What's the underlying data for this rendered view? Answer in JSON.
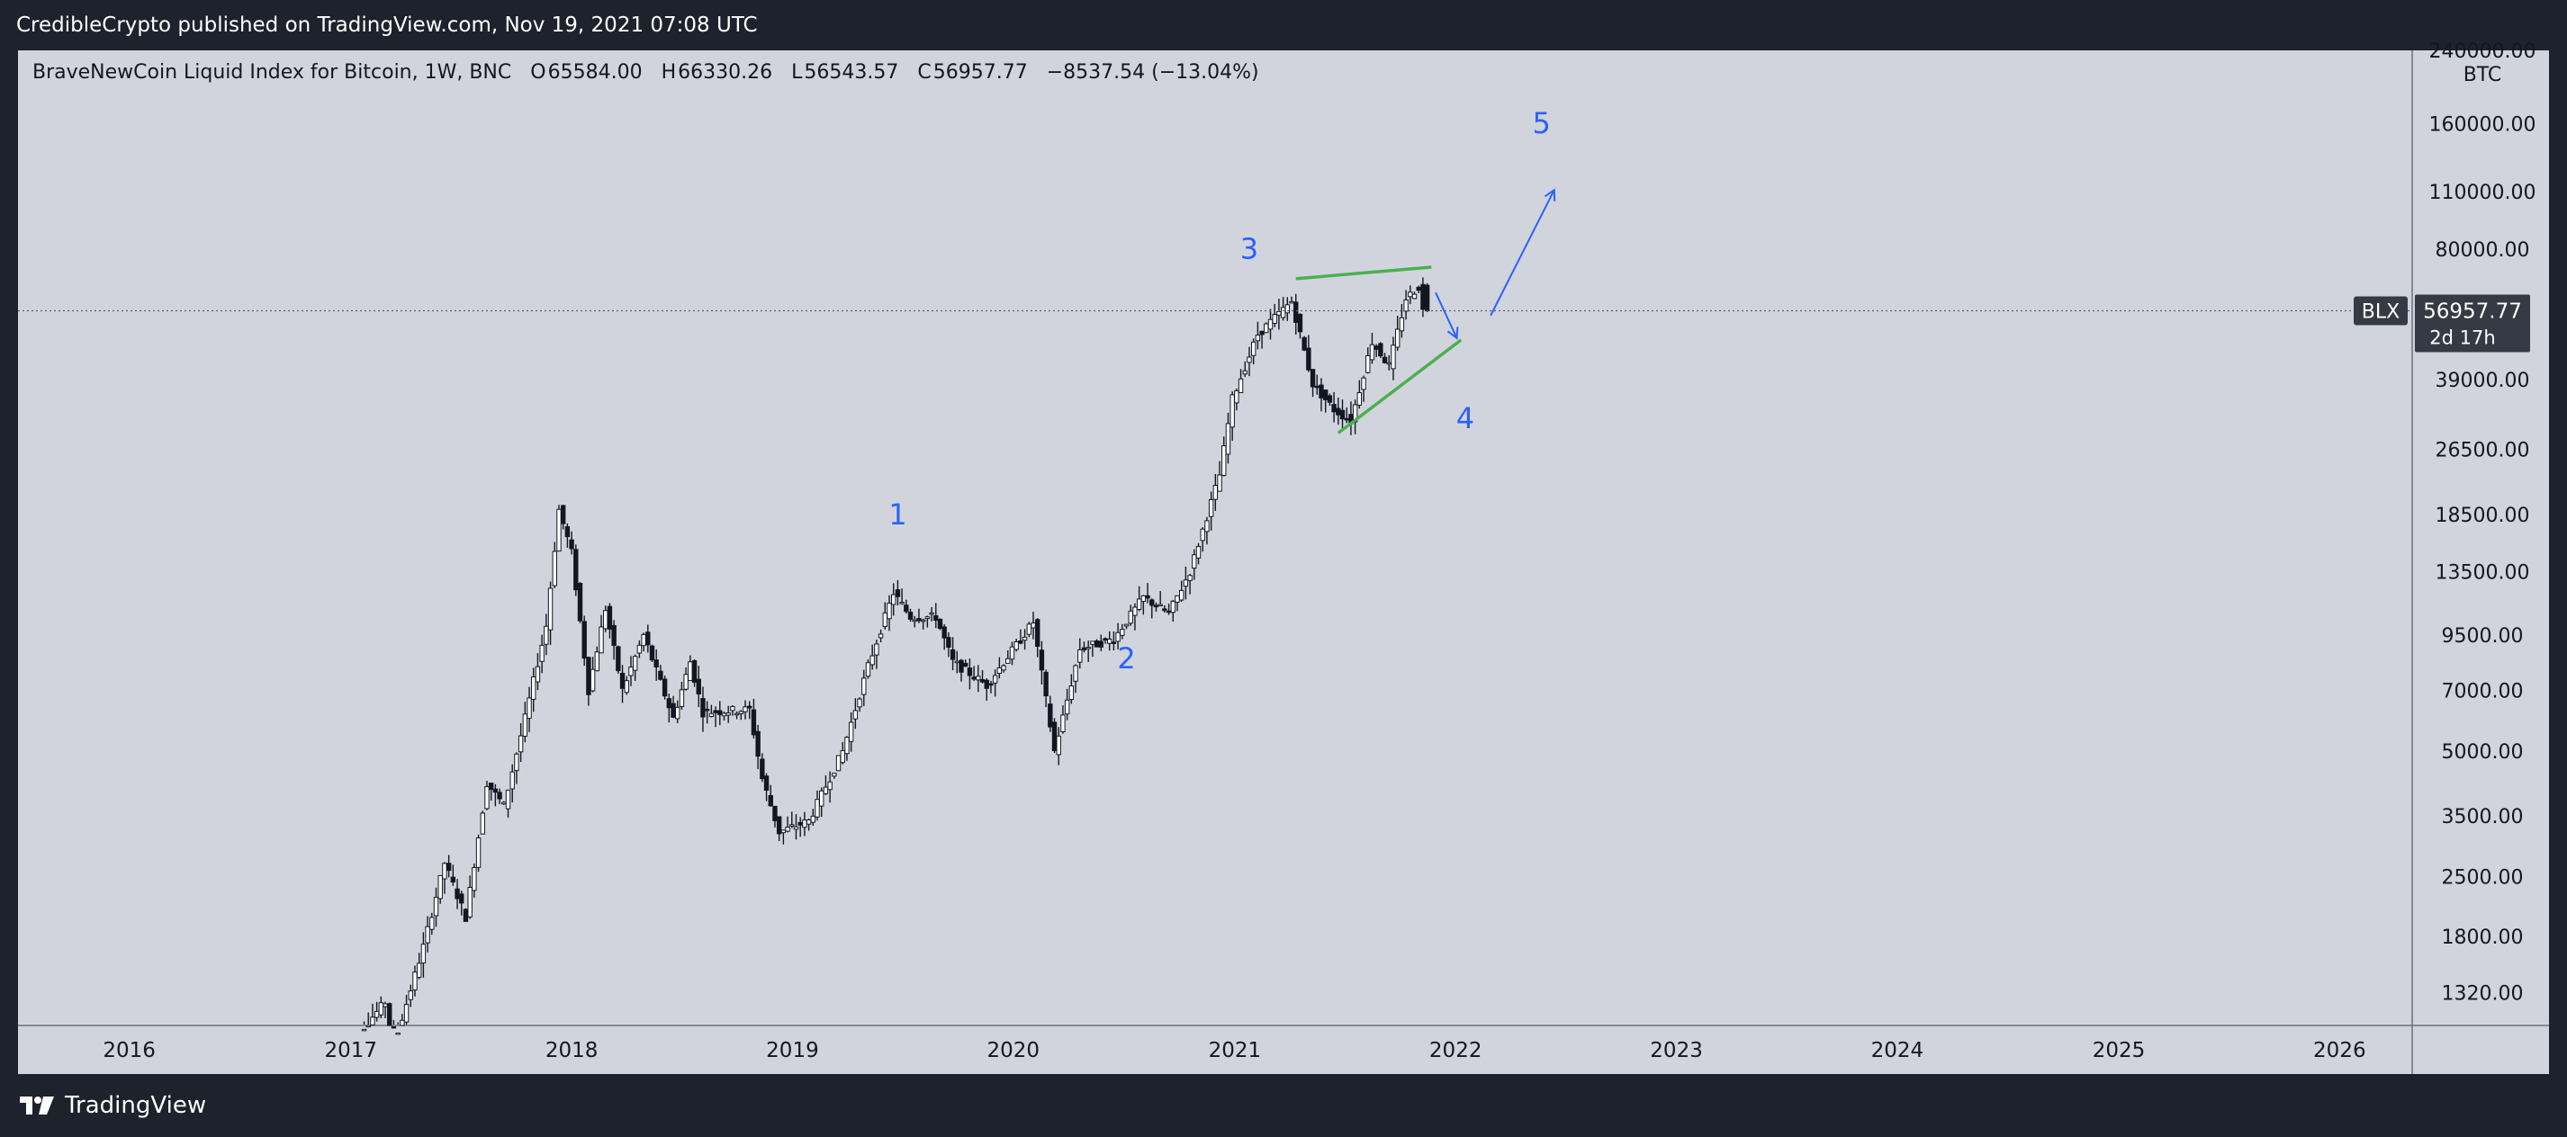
{
  "header": {
    "publisher_line": "CredibleCrypto published on TradingView.com, Nov 19, 2021 07:08 UTC"
  },
  "legend": {
    "symbol_name": "BraveNewCoin Liquid Index for Bitcoin, 1W, BNC",
    "open_key": "O",
    "open": "65584.00",
    "high_key": "H",
    "high": "66330.26",
    "low_key": "L",
    "low": "56543.57",
    "close_key": "C",
    "close": "56957.77",
    "change": "−8537.54 (−13.04%)"
  },
  "price_scale": {
    "top_label": "240000.00",
    "unit": "BTC",
    "ticks": [
      "160000.00",
      "110000.00",
      "80000.00",
      "39000.00",
      "26500.00",
      "18500.00",
      "13500.00",
      "9500.00",
      "7000.00",
      "5000.00",
      "3500.00",
      "2500.00",
      "1800.00",
      "1320.00"
    ],
    "current_symbol": "BLX",
    "current_price": "56957.77",
    "countdown": "2d 17h"
  },
  "time_scale": {
    "ticks": [
      "2016",
      "2017",
      "2018",
      "2019",
      "2020",
      "2021",
      "2022",
      "2023",
      "2024",
      "2025",
      "2026"
    ]
  },
  "footer": {
    "brand": "TradingView"
  },
  "colors": {
    "background": "#d1d4dc",
    "frame": "#1e222d",
    "candle": "#131722",
    "wave_label": "#2962ff",
    "trendline": "#4caf50",
    "arrow": "#2962ff",
    "price_badge": "#363a45"
  },
  "chart_data": {
    "type": "candlestick",
    "interval": "1W",
    "y_scale": "log",
    "x_range": [
      "2015-07-01",
      "2026-05-01"
    ],
    "ylim": [
      1100,
      240000
    ],
    "last_price": 56957.77,
    "price_path": [
      [
        "2016-12-26",
        960
      ],
      [
        "2017-03-06",
        1250
      ],
      [
        "2017-03-20",
        980
      ],
      [
        "2017-05-08",
        1700
      ],
      [
        "2017-06-12",
        2700
      ],
      [
        "2017-07-17",
        2000
      ],
      [
        "2017-08-21",
        4200
      ],
      [
        "2017-09-18",
        3700
      ],
      [
        "2017-10-23",
        6000
      ],
      [
        "2017-11-27",
        10000
      ],
      [
        "2017-12-18",
        19000
      ],
      [
        "2018-01-08",
        15000
      ],
      [
        "2018-02-05",
        7000
      ],
      [
        "2018-03-05",
        11000
      ],
      [
        "2018-04-02",
        7000
      ],
      [
        "2018-05-07",
        9500
      ],
      [
        "2018-06-25",
        6000
      ],
      [
        "2018-07-23",
        8200
      ],
      [
        "2018-08-13",
        6200
      ],
      [
        "2018-10-29",
        6300
      ],
      [
        "2018-11-19",
        4300
      ],
      [
        "2018-12-17",
        3200
      ],
      [
        "2019-02-04",
        3400
      ],
      [
        "2019-04-01",
        5000
      ],
      [
        "2019-05-13",
        8000
      ],
      [
        "2019-06-24",
        12000
      ],
      [
        "2019-07-22",
        10500
      ],
      [
        "2019-09-02",
        10500
      ],
      [
        "2019-09-30",
        8200
      ],
      [
        "2019-11-25",
        7200
      ],
      [
        "2020-02-10",
        10200
      ],
      [
        "2020-03-16",
        5000
      ],
      [
        "2020-04-27",
        8800
      ],
      [
        "2020-06-22",
        9300
      ],
      [
        "2020-08-10",
        11700
      ],
      [
        "2020-09-21",
        10700
      ],
      [
        "2020-10-26",
        13500
      ],
      [
        "2020-12-14",
        23000
      ],
      [
        "2021-01-04",
        35000
      ],
      [
        "2021-02-15",
        50000
      ],
      [
        "2021-04-12",
        60000
      ],
      [
        "2021-05-17",
        38000
      ],
      [
        "2021-06-21",
        33000
      ],
      [
        "2021-07-19",
        31000
      ],
      [
        "2021-08-23",
        48000
      ],
      [
        "2021-09-20",
        42000
      ],
      [
        "2021-10-18",
        61000
      ],
      [
        "2021-11-08",
        65000
      ],
      [
        "2021-11-15",
        56957.77
      ]
    ],
    "annotations": [
      {
        "type": "wave_label",
        "text": "1",
        "date": "2019-06-24",
        "price": 17500
      },
      {
        "type": "wave_label",
        "text": "2",
        "date": "2020-07-06",
        "price": 7900
      },
      {
        "type": "wave_label",
        "text": "3",
        "date": "2021-01-25",
        "price": 76000
      },
      {
        "type": "wave_label",
        "text": "4",
        "date": "2022-01-17",
        "price": 29800
      },
      {
        "type": "wave_label",
        "text": "5",
        "date": "2022-05-23",
        "price": 152000
      },
      {
        "type": "trendline",
        "from": [
          "2021-04-12",
          68000
        ],
        "to": [
          "2021-11-22",
          72500
        ]
      },
      {
        "type": "trendline",
        "from": [
          "2021-06-21",
          29000
        ],
        "to": [
          "2022-01-10",
          48500
        ]
      },
      {
        "type": "arrow",
        "from": [
          "2021-11-29",
          63000
        ],
        "to": [
          "2022-01-03",
          49000
        ]
      },
      {
        "type": "arrow",
        "from": [
          "2022-02-28",
          55500
        ],
        "to": [
          "2022-06-13",
          111000
        ]
      }
    ]
  }
}
